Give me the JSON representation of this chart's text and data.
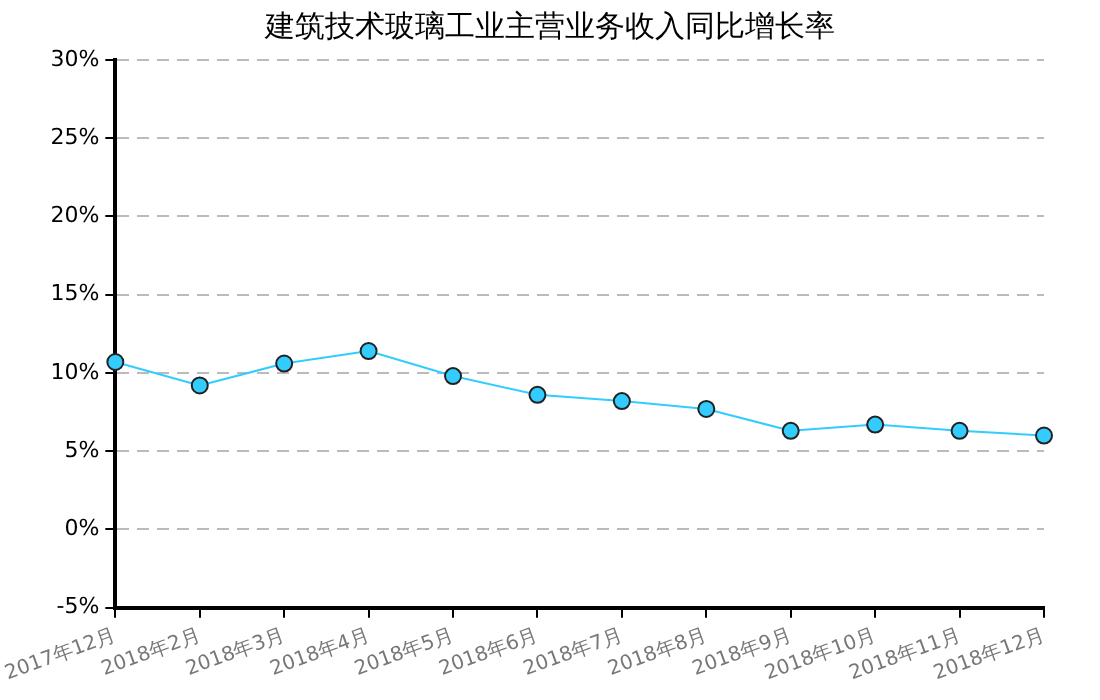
{
  "chart_data": {
    "type": "line",
    "title": "建筑技术玻璃工业主营业务收入同比增长率",
    "categories": [
      "2017年12月",
      "2018年2月",
      "2018年3月",
      "2018年4月",
      "2018年5月",
      "2018年6月",
      "2018年7月",
      "2018年8月",
      "2018年9月",
      "2018年10月",
      "2018年11月",
      "2018年12月"
    ],
    "series": [
      {
        "color": "#33ccff",
        "values": [
          10.7,
          9.2,
          10.6,
          11.4,
          9.8,
          8.6,
          8.2,
          7.7,
          6.3,
          6.7,
          6.3,
          6.0
        ]
      }
    ],
    "ylim": [
      -5,
      30
    ],
    "yticks": [
      {
        "value": -5,
        "label": "-5%"
      },
      {
        "value": 0,
        "label": "0%"
      },
      {
        "value": 5,
        "label": "5%"
      },
      {
        "value": 10,
        "label": "10%"
      },
      {
        "value": 15,
        "label": "15%"
      },
      {
        "value": 20,
        "label": "20%"
      },
      {
        "value": 25,
        "label": "25%"
      },
      {
        "value": 30,
        "label": "30%"
      }
    ],
    "grid": "y",
    "marker": "circle",
    "line_style": "solid",
    "legend": false
  }
}
